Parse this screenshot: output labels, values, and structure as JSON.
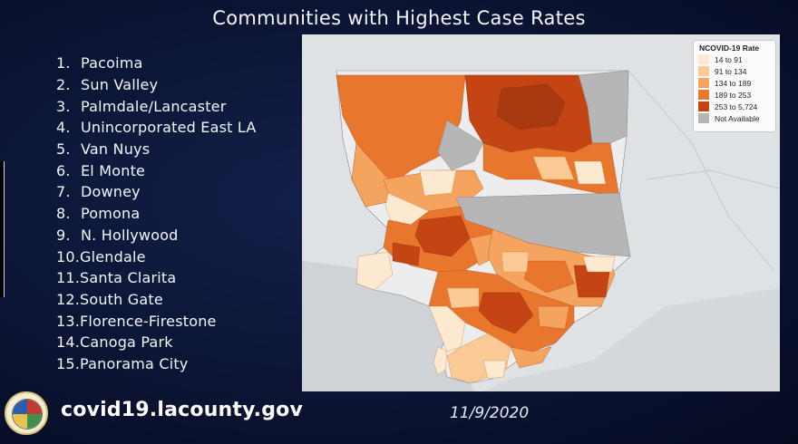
{
  "title": "Communities with Highest Case Rates",
  "communities": [
    {
      "num": "1.",
      "name": "Pacoima"
    },
    {
      "num": "2.",
      "name": "Sun Valley"
    },
    {
      "num": "3.",
      "name": "Palmdale/Lancaster"
    },
    {
      "num": "4.",
      "name": "Unincorporated East LA"
    },
    {
      "num": "5.",
      "name": "Van Nuys"
    },
    {
      "num": "6.",
      "name": "El Monte"
    },
    {
      "num": "7.",
      "name": "Downey"
    },
    {
      "num": "8.",
      "name": "Pomona"
    },
    {
      "num": "9.",
      "name": "N. Hollywood"
    },
    {
      "num": "10.",
      "name": "Glendale"
    },
    {
      "num": "11.",
      "name": "Santa Clarita"
    },
    {
      "num": "12.",
      "name": "South Gate"
    },
    {
      "num": "13.",
      "name": "Florence-Firestone"
    },
    {
      "num": "14.",
      "name": "Canoga Park"
    },
    {
      "num": "15.",
      "name": "Panorama City"
    }
  ],
  "legend": {
    "title": "NCOVID-19 Rate",
    "items": [
      {
        "label": "14 to 91",
        "color": "#fde9cf"
      },
      {
        "label": "91 to 134",
        "color": "#fbc995"
      },
      {
        "label": "134 to 189",
        "color": "#f5a460"
      },
      {
        "label": "189 to 253",
        "color": "#e9762d"
      },
      {
        "label": "253 to 5,724",
        "color": "#c44513"
      },
      {
        "label": "Not Available",
        "color": "#b6b6b6"
      }
    ]
  },
  "website": "covid19.lacounty.gov",
  "date": "11/9/2020",
  "colors": {
    "background": "#0b1433",
    "map_background": "#dfe2e5",
    "ocean": "#c9ccd0",
    "not_available": "#b6b6b6"
  },
  "icons": {
    "seal": "la-county-seal-icon"
  }
}
